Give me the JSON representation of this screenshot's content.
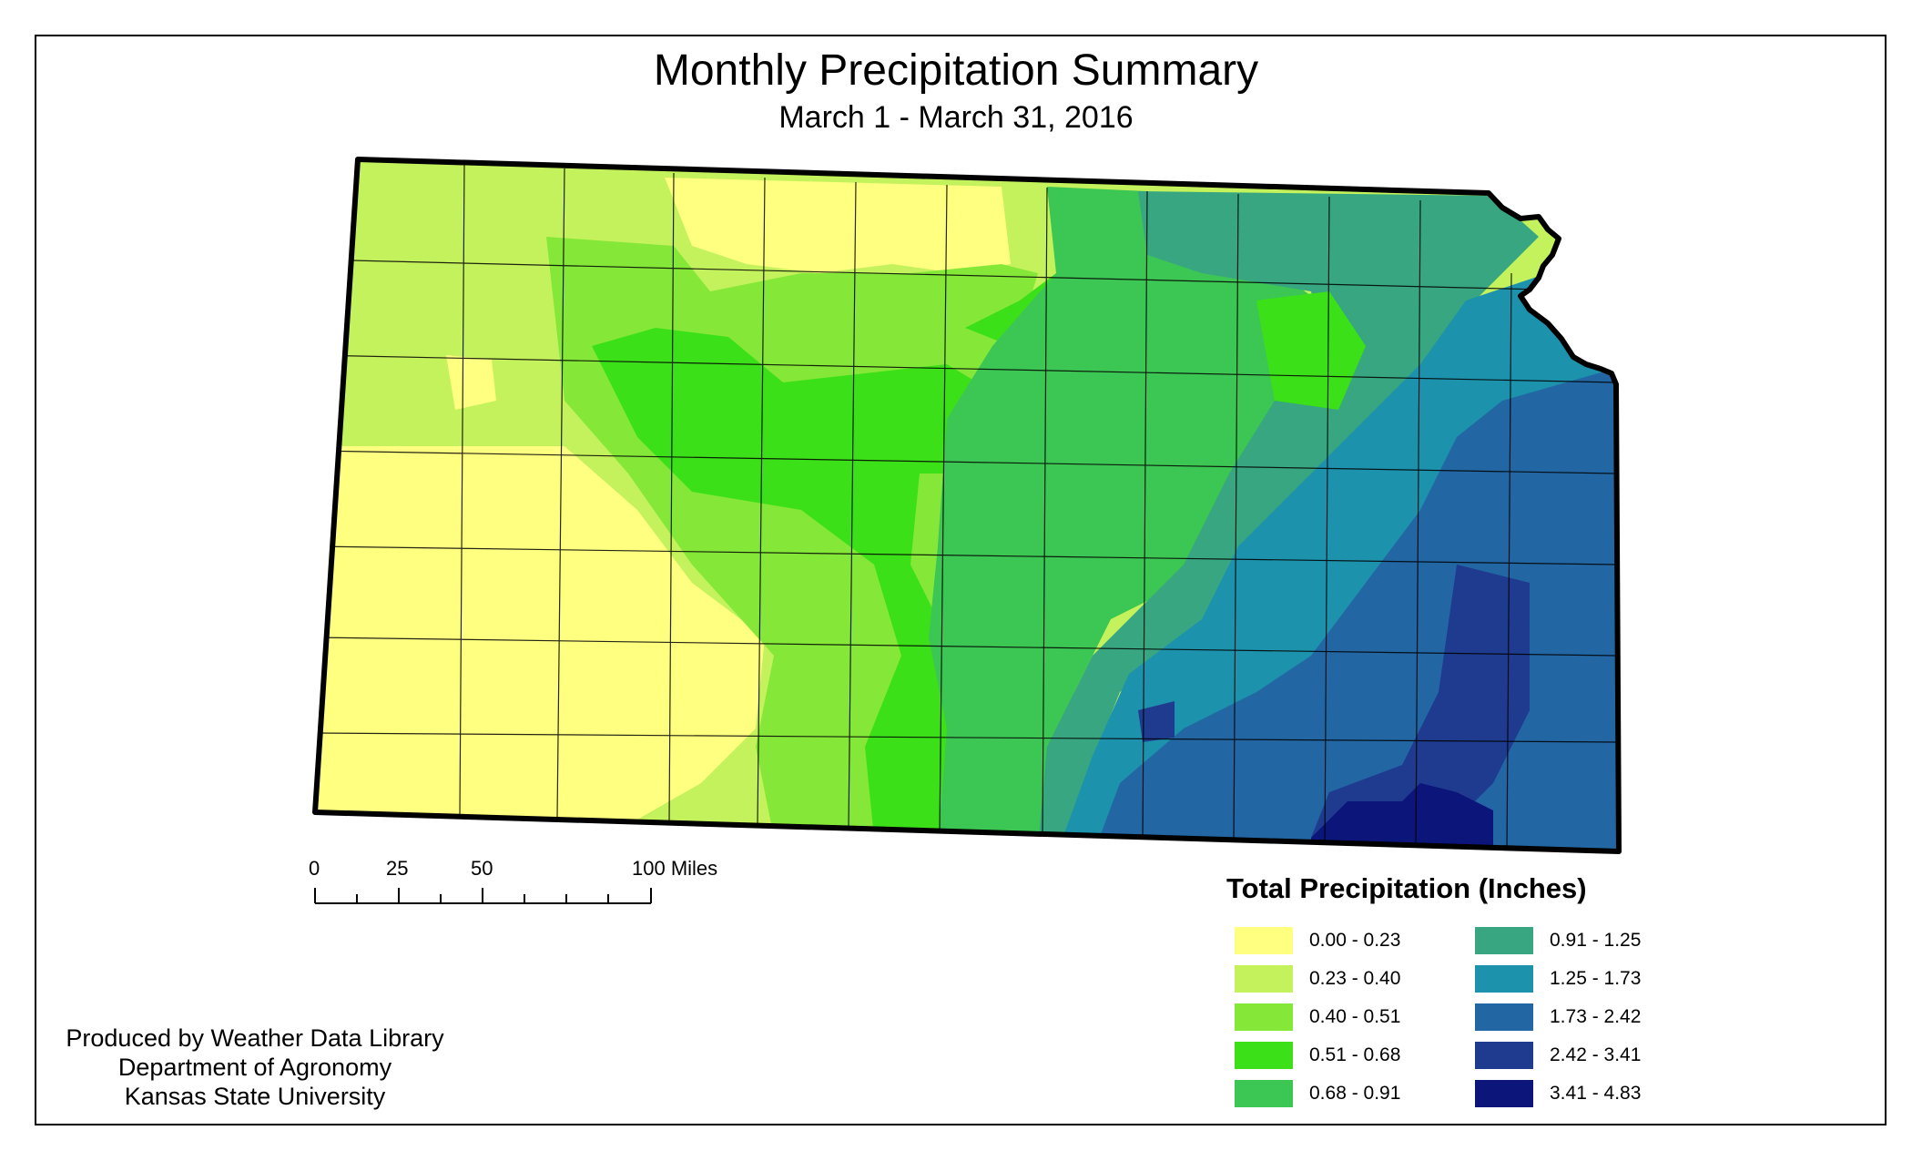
{
  "title": "Monthly Precipitation Summary",
  "subtitle": "March 1 - March 31, 2016",
  "scale_bar": {
    "labels": [
      "0",
      "25",
      "50",
      "100 Miles"
    ]
  },
  "legend": {
    "title": "Total Precipitation (Inches)",
    "items": [
      {
        "label": "0.00 - 0.23",
        "color": "#ffff80"
      },
      {
        "label": "0.23 - 0.40",
        "color": "#c4f25c"
      },
      {
        "label": "0.40 - 0.51",
        "color": "#85e838"
      },
      {
        "label": "0.51 - 0.68",
        "color": "#3ce018"
      },
      {
        "label": "0.68 - 0.91",
        "color": "#3cc653"
      },
      {
        "label": "0.91 - 1.25",
        "color": "#37a681"
      },
      {
        "label": "1.25 - 1.73",
        "color": "#1d92ad"
      },
      {
        "label": "1.73 - 2.42",
        "color": "#2266a3"
      },
      {
        "label": "2.42 - 3.41",
        "color": "#1f3b8f"
      },
      {
        "label": "3.41 - 4.83",
        "color": "#0c157a"
      }
    ]
  },
  "credits": {
    "line1": "Produced by Weather Data Library",
    "line2": "Department of Agronomy",
    "line3": "Kansas State University"
  }
}
